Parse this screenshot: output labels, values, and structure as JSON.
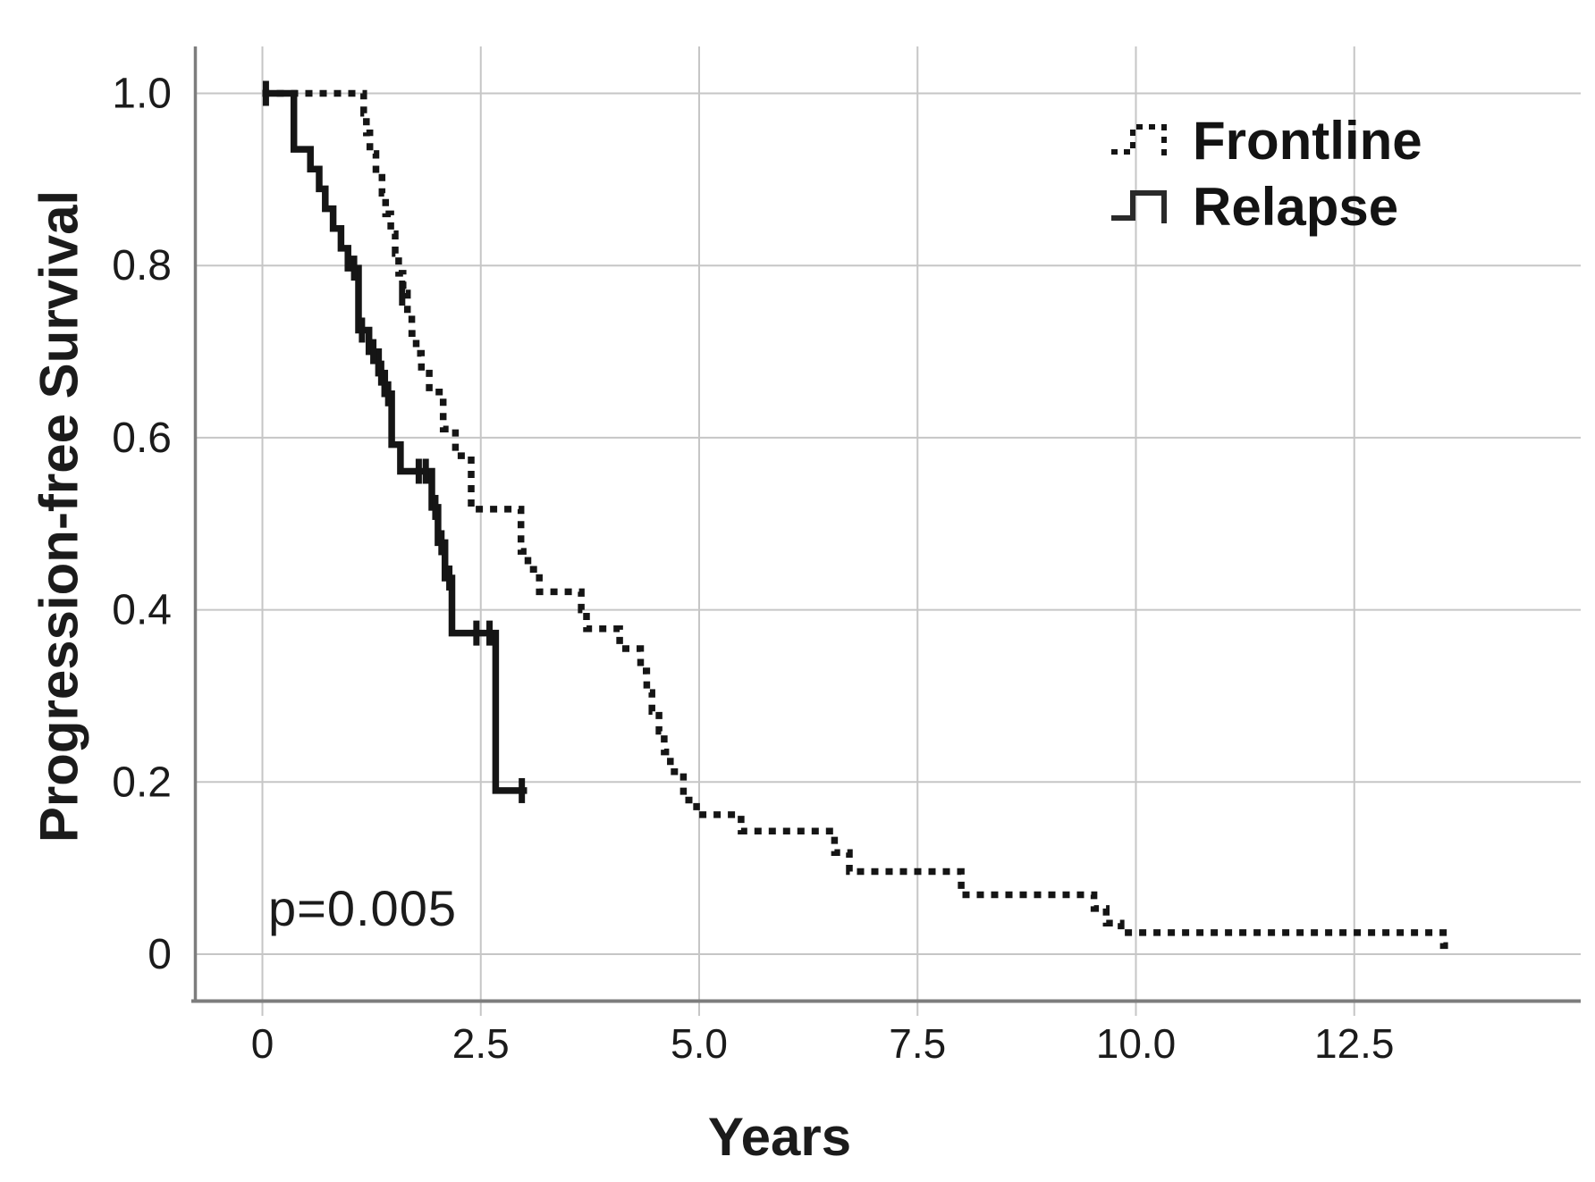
{
  "chart_data": {
    "type": "line",
    "variant": "kaplan_meier_step",
    "title": "",
    "xlabel": "Years",
    "ylabel": "Progression-free Survival",
    "x_ticks": [
      0,
      2.5,
      5.0,
      7.5,
      10.0,
      12.5
    ],
    "x_tick_labels": [
      "0",
      "2.5",
      "5.0",
      "7.5",
      "10.0",
      "12.5"
    ],
    "y_ticks": [
      0,
      0.2,
      0.4,
      0.6,
      0.8,
      1.0
    ],
    "y_tick_labels": [
      "0",
      "0.2",
      "0.4",
      "0.6",
      "0.8",
      "1.0"
    ],
    "xlim": [
      -0.78,
      15.1
    ],
    "ylim": [
      -0.06,
      1.06
    ],
    "grid": true,
    "legend_position": "top-right",
    "annotation": {
      "text": "p=0.005",
      "x": 0.1,
      "y": 0.06
    },
    "colors": {
      "curve": "#151515",
      "gridline": "#c6c6c6",
      "axis_line": "#7d7d7d",
      "text": "#1b1b1b"
    },
    "series": [
      {
        "name": "Frontline",
        "line_style": "dotted",
        "color": "#151515",
        "step_points": [
          [
            0,
            1.0
          ],
          [
            1.16,
            0.977
          ],
          [
            1.19,
            0.954
          ],
          [
            1.23,
            0.93
          ],
          [
            1.3,
            0.907
          ],
          [
            1.37,
            0.884
          ],
          [
            1.41,
            0.86
          ],
          [
            1.47,
            0.837
          ],
          [
            1.52,
            0.814
          ],
          [
            1.56,
            0.791
          ],
          [
            1.61,
            0.768
          ],
          [
            1.66,
            0.744
          ],
          [
            1.71,
            0.721
          ],
          [
            1.76,
            0.698
          ],
          [
            1.82,
            0.675
          ],
          [
            1.91,
            0.653
          ],
          [
            2.07,
            0.61
          ],
          [
            2.21,
            0.579
          ],
          [
            2.39,
            0.517
          ],
          [
            2.96,
            0.468
          ],
          [
            3.04,
            0.447
          ],
          [
            3.17,
            0.421
          ],
          [
            3.65,
            0.4
          ],
          [
            3.71,
            0.378
          ],
          [
            4.09,
            0.355
          ],
          [
            4.33,
            0.329
          ],
          [
            4.4,
            0.304
          ],
          [
            4.46,
            0.282
          ],
          [
            4.54,
            0.259
          ],
          [
            4.6,
            0.235
          ],
          [
            4.67,
            0.212
          ],
          [
            4.82,
            0.179
          ],
          [
            4.97,
            0.162
          ],
          [
            5.48,
            0.143
          ],
          [
            6.55,
            0.118
          ],
          [
            6.72,
            0.096
          ],
          [
            8.0,
            0.069
          ],
          [
            9.52,
            0.053
          ],
          [
            9.66,
            0.036
          ],
          [
            9.83,
            0.025
          ],
          [
            13.52,
            0.01
          ]
        ],
        "end_x": 13.6,
        "censor_marks": [
          [
            1.6,
            0.768
          ]
        ]
      },
      {
        "name": "Relapse",
        "line_style": "solid",
        "color": "#151515",
        "step_points": [
          [
            0,
            1.0
          ],
          [
            0.36,
            0.935
          ],
          [
            0.55,
            0.912
          ],
          [
            0.65,
            0.889
          ],
          [
            0.72,
            0.866
          ],
          [
            0.81,
            0.843
          ],
          [
            0.9,
            0.82
          ],
          [
            0.98,
            0.797
          ],
          [
            1.1,
            0.725
          ],
          [
            1.22,
            0.7
          ],
          [
            1.33,
            0.675
          ],
          [
            1.4,
            0.651
          ],
          [
            1.48,
            0.592
          ],
          [
            1.58,
            0.561
          ],
          [
            1.94,
            0.519
          ],
          [
            2.01,
            0.478
          ],
          [
            2.09,
            0.437
          ],
          [
            2.17,
            0.373
          ],
          [
            2.67,
            0.19
          ]
        ],
        "end_x": 3.03,
        "censor_marks": [
          [
            0.04,
            1.0
          ],
          [
            1.05,
            0.797
          ],
          [
            1.14,
            0.725
          ],
          [
            1.27,
            0.7
          ],
          [
            1.36,
            0.675
          ],
          [
            1.44,
            0.651
          ],
          [
            1.79,
            0.561
          ],
          [
            1.87,
            0.561
          ],
          [
            1.98,
            0.519
          ],
          [
            2.05,
            0.478
          ],
          [
            2.14,
            0.437
          ],
          [
            2.45,
            0.373
          ],
          [
            2.6,
            0.373
          ],
          [
            2.97,
            0.19
          ]
        ]
      }
    ]
  }
}
